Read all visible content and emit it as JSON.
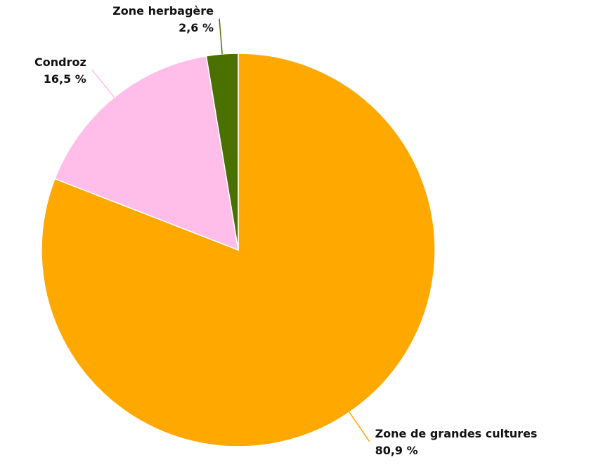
{
  "chart_data": {
    "type": "pie",
    "categories": [
      "Zone de grandes cultures",
      "Condroz",
      "Zone herbagère"
    ],
    "values": [
      80.9,
      16.5,
      2.6
    ],
    "value_labels": [
      "80,9 %",
      "16,5 %",
      "2,6 %"
    ],
    "colors": [
      "#ffa800",
      "#ffbde9",
      "#4a7000"
    ]
  }
}
